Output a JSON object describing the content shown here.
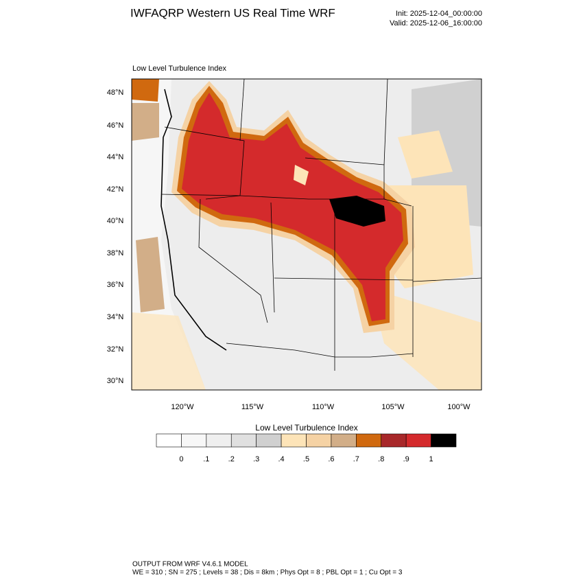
{
  "header": {
    "title": "IWFAQRP Western US Real Time WRF",
    "init": "Init: 2025-12-04_00:00:00",
    "valid": "Valid: 2025-12-06_16:00:00"
  },
  "map": {
    "subtitle": "Low Level Turbulence Index",
    "lat_labels": [
      "48°N",
      "46°N",
      "44°N",
      "42°N",
      "40°N",
      "38°N",
      "36°N",
      "34°N",
      "32°N",
      "30°N"
    ],
    "lon_labels": [
      "120°W",
      "115°W",
      "110°W",
      "105°W",
      "100°W"
    ]
  },
  "colorbar": {
    "title": "Low Level Turbulence Index",
    "colors": [
      "#ffffff",
      "#f7f7f7",
      "#efefef",
      "#e0e0e0",
      "#d0d0d0",
      "#fde4b8",
      "#f5d2a4",
      "#d2ae88",
      "#d0690f",
      "#a8282a",
      "#d42a2c",
      "#000000"
    ],
    "labels": [
      "0",
      ".1",
      ".2",
      ".3",
      ".4",
      ".5",
      ".6",
      ".7",
      ".8",
      ".9",
      "1"
    ]
  },
  "footer": {
    "line1": "OUTPUT FROM WRF V4.6.1 MODEL",
    "line2": "WE = 310 ; SN = 275 ; Levels = 38 ; Dis = 8km ; Phys Opt = 8 ; PBL Opt = 1 ; Cu Opt = 3"
  }
}
